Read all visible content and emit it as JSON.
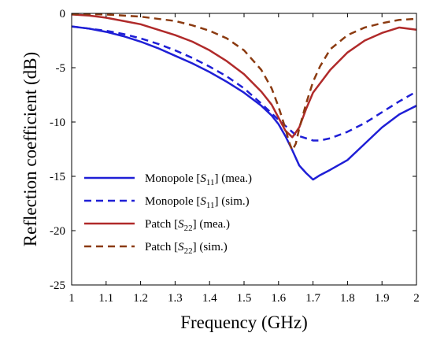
{
  "chart_data": {
    "type": "line",
    "xlabel": "Frequency (GHz)",
    "ylabel": "Reflection coefficient (dB)",
    "xlim": [
      1,
      2
    ],
    "ylim": [
      -25,
      0
    ],
    "xticks": [
      1,
      1.1,
      1.2,
      1.3,
      1.4,
      1.5,
      1.6,
      1.7,
      1.8,
      1.9,
      2
    ],
    "yticks": [
      0,
      -5,
      -10,
      -15,
      -20,
      -25
    ],
    "grid": false,
    "legend_position": "lower-left",
    "series": [
      {
        "name_prefix": "Monopole [",
        "name_symbol": "S",
        "name_sub": "11",
        "name_suffix": "] (mea.)",
        "color": "#1f1fd6",
        "dash": "solid",
        "x": [
          1.0,
          1.05,
          1.1,
          1.15,
          1.2,
          1.25,
          1.3,
          1.35,
          1.4,
          1.45,
          1.5,
          1.55,
          1.58,
          1.6,
          1.62,
          1.64,
          1.66,
          1.68,
          1.7,
          1.72,
          1.75,
          1.8,
          1.85,
          1.9,
          1.95,
          2.0
        ],
        "y": [
          -1.2,
          -1.4,
          -1.7,
          -2.1,
          -2.6,
          -3.2,
          -3.9,
          -4.6,
          -5.4,
          -6.3,
          -7.3,
          -8.5,
          -9.4,
          -10.2,
          -11.3,
          -12.6,
          -14.0,
          -14.7,
          -15.3,
          -14.9,
          -14.4,
          -13.5,
          -12.0,
          -10.5,
          -9.3,
          -8.5
        ]
      },
      {
        "name_prefix": "Monopole [",
        "name_symbol": "S",
        "name_sub": "11",
        "name_suffix": "] (sim.)",
        "color": "#1f1fd6",
        "dash": "dashed",
        "x": [
          1.0,
          1.05,
          1.1,
          1.15,
          1.2,
          1.25,
          1.3,
          1.35,
          1.4,
          1.45,
          1.5,
          1.55,
          1.6,
          1.65,
          1.7,
          1.72,
          1.75,
          1.8,
          1.85,
          1.9,
          1.95,
          2.0
        ],
        "y": [
          -1.2,
          -1.4,
          -1.6,
          -1.9,
          -2.3,
          -2.8,
          -3.4,
          -4.1,
          -4.9,
          -5.8,
          -6.9,
          -8.3,
          -9.8,
          -11.2,
          -11.7,
          -11.7,
          -11.5,
          -10.9,
          -10.1,
          -9.1,
          -8.1,
          -7.2
        ]
      },
      {
        "name_prefix": "Patch [",
        "name_symbol": "S",
        "name_sub": "22",
        "name_suffix": "] (mea.)",
        "color": "#b02a2a",
        "dash": "solid",
        "x": [
          1.0,
          1.05,
          1.1,
          1.15,
          1.2,
          1.25,
          1.3,
          1.35,
          1.4,
          1.45,
          1.5,
          1.55,
          1.58,
          1.6,
          1.62,
          1.64,
          1.66,
          1.68,
          1.7,
          1.75,
          1.8,
          1.85,
          1.9,
          1.95,
          2.0
        ],
        "y": [
          -0.1,
          -0.2,
          -0.4,
          -0.7,
          -1.0,
          -1.5,
          -2.0,
          -2.6,
          -3.4,
          -4.4,
          -5.6,
          -7.2,
          -8.4,
          -9.6,
          -10.8,
          -11.4,
          -10.5,
          -8.8,
          -7.3,
          -5.2,
          -3.6,
          -2.5,
          -1.8,
          -1.3,
          -1.5
        ]
      },
      {
        "name_prefix": "Patch [",
        "name_symbol": "S",
        "name_sub": "22",
        "name_suffix": "] (sim.)",
        "color": "#8b3a10",
        "dash": "dashed",
        "x": [
          1.0,
          1.1,
          1.2,
          1.3,
          1.35,
          1.4,
          1.45,
          1.5,
          1.55,
          1.58,
          1.6,
          1.62,
          1.63,
          1.64,
          1.65,
          1.66,
          1.68,
          1.7,
          1.72,
          1.75,
          1.8,
          1.85,
          1.9,
          1.95,
          2.0
        ],
        "y": [
          -0.05,
          -0.1,
          -0.3,
          -0.7,
          -1.1,
          -1.6,
          -2.3,
          -3.4,
          -5.2,
          -6.9,
          -8.6,
          -10.6,
          -11.8,
          -12.6,
          -12.0,
          -10.6,
          -8.3,
          -6.3,
          -4.9,
          -3.3,
          -2.0,
          -1.3,
          -0.9,
          -0.6,
          -0.5
        ]
      }
    ]
  }
}
